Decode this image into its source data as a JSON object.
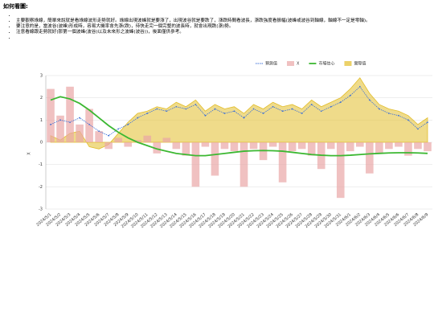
{
  "heading": "如何看圖:",
  "notes": [
    "主要觀察綠線，簡單來說就是看綠線波形走勢就好。綠線出現波峰就是要漲了，出現波谷就是要跌了，漲跌時間看波長，漲跌強度看振幅(波峰或波谷到軸線，軸線不一定是零軸)。",
    "要注意的是，當波谷(波峰)形成時，容易大機率會先漲(跌)，待快走完一個完整的波長時，就會出現跌(漲)勢。",
    "注意看線跟走勢就好(那第一個波峰(波谷)以及未來形之波峰(波谷))，後面僅供參考。"
  ],
  "chart_data": {
    "type": "combo",
    "y_label": "X",
    "categories": [
      "2024/5/1",
      "2024/5/2",
      "2024/5/3",
      "2024/5/4",
      "2024/5/5",
      "2024/5/6",
      "2024/5/7",
      "2024/5/8",
      "2024/5/9",
      "2024/5/10",
      "2024/5/11",
      "2024/5/12",
      "2024/5/13",
      "2024/5/14",
      "2024/5/15",
      "2024/5/16",
      "2024/5/17",
      "2024/5/18",
      "2024/5/19",
      "2024/5/20",
      "2024/5/21",
      "2024/5/22",
      "2024/5/23",
      "2024/5/24",
      "2024/5/25",
      "2024/5/26",
      "2024/5/27",
      "2024/5/28",
      "2024/5/29",
      "2024/5/30",
      "2024/5/31",
      "2024/6/1",
      "2024/6/2",
      "2024/6/3",
      "2024/6/4",
      "2024/6/5",
      "2024/6/6",
      "2024/6/7",
      "2024/6/8",
      "2024/6/9"
    ],
    "series": [
      {
        "name": "預測值",
        "type": "dotline",
        "color": "#3a6fd8",
        "values": [
          0.8,
          1.0,
          0.9,
          1.1,
          0.8,
          0.5,
          0.3,
          0.6,
          0.8,
          1.1,
          1.3,
          1.5,
          1.4,
          1.6,
          1.5,
          1.7,
          1.2,
          1.5,
          1.3,
          1.4,
          1.1,
          1.5,
          1.3,
          1.6,
          1.4,
          1.5,
          1.3,
          1.7,
          1.4,
          1.6,
          1.8,
          2.1,
          2.5,
          1.9,
          1.5,
          1.3,
          1.2,
          1.0,
          0.6,
          0.9
        ]
      },
      {
        "name": "X",
        "type": "bar",
        "color": "#eaa6a6",
        "values": [
          2.4,
          1.2,
          2.5,
          0.8,
          1.5,
          0.5,
          -0.3,
          0.2,
          -0.2,
          0.1,
          0.3,
          -0.5,
          0.2,
          -0.3,
          -0.6,
          -2.0,
          -0.2,
          -1.5,
          -0.3,
          -0.4,
          -2.0,
          -0.3,
          -0.8,
          -0.2,
          -1.8,
          -0.4,
          -0.3,
          -0.6,
          -1.2,
          -0.3,
          -2.5,
          -0.4,
          -0.2,
          -1.4,
          -0.5,
          -0.3,
          -0.2,
          -0.6,
          -0.3,
          -0.4
        ]
      },
      {
        "name": "市場信心",
        "type": "line",
        "color": "#3cb832",
        "values": [
          1.9,
          2.05,
          1.95,
          1.75,
          1.45,
          1.1,
          0.75,
          0.45,
          0.2,
          0,
          -0.15,
          -0.3,
          -0.4,
          -0.5,
          -0.55,
          -0.6,
          -0.6,
          -0.55,
          -0.5,
          -0.45,
          -0.4,
          -0.38,
          -0.37,
          -0.38,
          -0.4,
          -0.45,
          -0.5,
          -0.55,
          -0.58,
          -0.6,
          -0.6,
          -0.58,
          -0.55,
          -0.52,
          -0.5,
          -0.48,
          -0.47,
          -0.47,
          -0.48,
          -0.5
        ]
      },
      {
        "name": "實際值",
        "type": "area",
        "color": "#e2bd2a",
        "values": [
          0.3,
          0.1,
          0.4,
          0.5,
          -0.2,
          -0.3,
          -0.1,
          0.4,
          0.9,
          1.3,
          1.4,
          1.6,
          1.5,
          1.8,
          1.6,
          1.9,
          1.4,
          1.7,
          1.5,
          1.6,
          1.3,
          1.7,
          1.5,
          1.8,
          1.6,
          1.7,
          1.5,
          1.9,
          1.6,
          1.8,
          2.0,
          2.4,
          2.9,
          2.2,
          1.7,
          1.5,
          1.4,
          1.2,
          0.8,
          1.1
        ]
      }
    ],
    "ylim": [
      -3,
      3
    ],
    "yticks": [
      -3,
      -2,
      -1,
      0,
      1,
      2,
      3
    ],
    "grid": true
  }
}
